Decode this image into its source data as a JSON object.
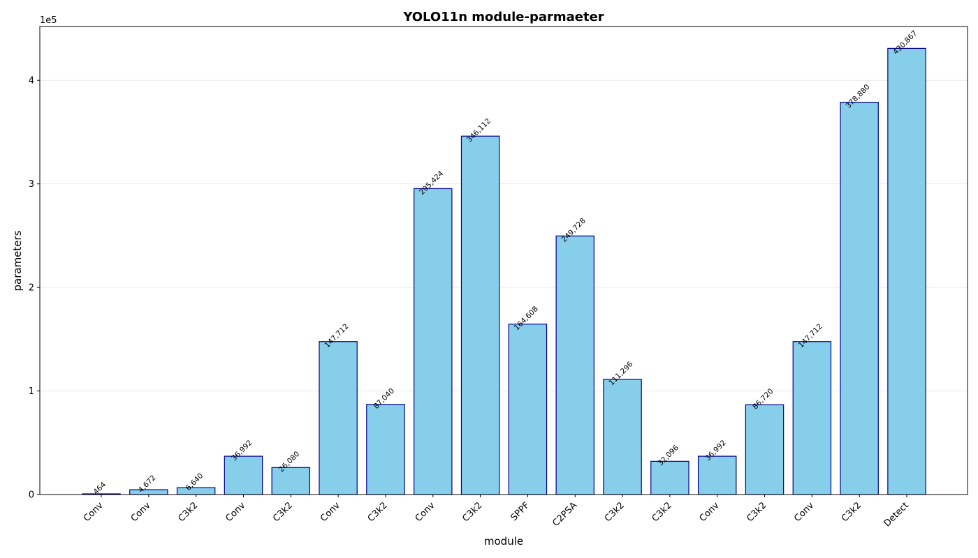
{
  "chart_data": {
    "type": "bar",
    "title": "YOLO11n module-parmaeter",
    "xlabel": "module",
    "ylabel": "parameters",
    "y_offset_label": "1e5",
    "categories": [
      "Conv",
      "Conv",
      "C3k2",
      "Conv",
      "C3k2",
      "Conv",
      "C3k2",
      "Conv",
      "C3k2",
      "SPPF",
      "C2PSA",
      "C3k2",
      "C3k2",
      "Conv",
      "C3k2",
      "Conv",
      "C3k2",
      "Detect"
    ],
    "values": [
      464,
      4672,
      6640,
      36992,
      26080,
      147712,
      87040,
      295424,
      346112,
      164608,
      249728,
      111296,
      32096,
      36992,
      86720,
      147712,
      378880,
      430867
    ],
    "data_labels": [
      "464",
      "4,672",
      "6,640",
      "36,992",
      "26,080",
      "147,712",
      "87,040",
      "295,424",
      "346,112",
      "164,608",
      "249,728",
      "111,296",
      "32,096",
      "36,992",
      "86,720",
      "147,712",
      "378,880",
      "430,867"
    ],
    "ylim": [
      0,
      452000
    ],
    "yticks": [
      0,
      100000,
      200000,
      300000,
      400000
    ],
    "ytick_labels": [
      "0",
      "1",
      "2",
      "3",
      "4"
    ],
    "grid": "y",
    "colors": {
      "bar_fill": "#87ceeb",
      "bar_edge": "#00008b"
    }
  }
}
